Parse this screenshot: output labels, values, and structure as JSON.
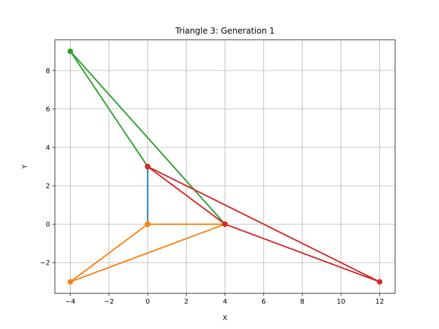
{
  "chart_data": {
    "type": "line",
    "title": "Triangle 3: Generation 1",
    "xlabel": "X",
    "ylabel": "Y",
    "xlim": [
      -4.8,
      12.8
    ],
    "ylim": [
      -3.6,
      9.6
    ],
    "xticks": [
      -4,
      -2,
      0,
      2,
      4,
      6,
      8,
      10,
      12
    ],
    "yticks": [
      -2,
      0,
      2,
      4,
      6,
      8
    ],
    "grid": true,
    "series": [
      {
        "color": "#1f77b4",
        "points": [
          [
            0,
            0
          ],
          [
            0,
            3
          ]
        ]
      },
      {
        "color": "#ff7f0e",
        "points": [
          [
            0,
            0
          ],
          [
            4,
            0
          ],
          [
            -4,
            -3
          ],
          [
            0,
            0
          ]
        ]
      },
      {
        "color": "#2ca02c",
        "points": [
          [
            4,
            0
          ],
          [
            -4,
            9
          ],
          [
            0,
            3
          ]
        ]
      },
      {
        "color": "#d62728",
        "points": [
          [
            0,
            3
          ],
          [
            12,
            -3
          ],
          [
            4,
            0
          ],
          [
            0,
            3
          ]
        ]
      }
    ]
  }
}
